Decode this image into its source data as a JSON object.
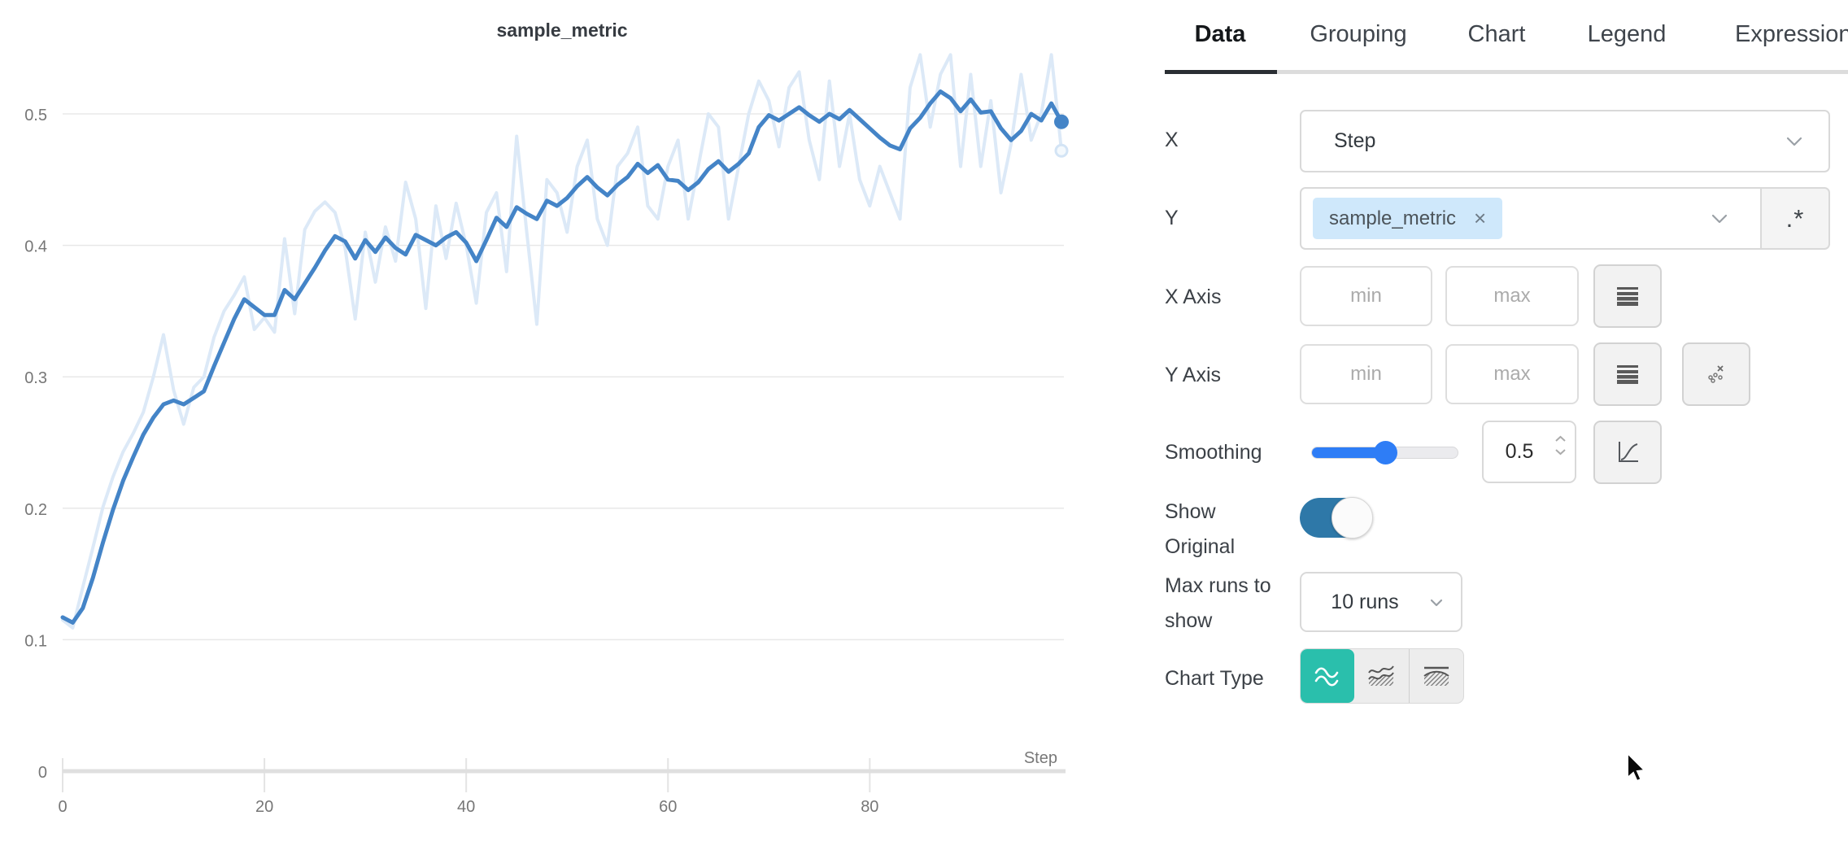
{
  "chart_data": {
    "type": "line",
    "title": "sample_metric",
    "xlabel": "Step",
    "x_ticks": [
      0,
      20,
      40,
      60,
      80
    ],
    "y_ticks": [
      0,
      0.1,
      0.2,
      0.3,
      0.4,
      0.5
    ],
    "xlim": [
      0,
      99
    ],
    "ylim": [
      0,
      0.55
    ],
    "legend_position": "none",
    "grid": "horizontal",
    "series": [
      {
        "name": "sample_metric (original)",
        "role": "original",
        "color": "#dce9f7",
        "values": [
          0.115,
          0.109,
          0.14,
          0.17,
          0.201,
          0.224,
          0.243,
          0.257,
          0.273,
          0.3,
          0.332,
          0.29,
          0.264,
          0.292,
          0.3,
          0.33,
          0.35,
          0.362,
          0.376,
          0.336,
          0.345,
          0.334,
          0.405,
          0.348,
          0.412,
          0.426,
          0.433,
          0.425,
          0.398,
          0.344,
          0.41,
          0.372,
          0.414,
          0.388,
          0.448,
          0.42,
          0.352,
          0.43,
          0.39,
          0.432,
          0.4,
          0.356,
          0.425,
          0.44,
          0.38,
          0.483,
          0.41,
          0.34,
          0.45,
          0.44,
          0.41,
          0.46,
          0.48,
          0.42,
          0.4,
          0.46,
          0.47,
          0.49,
          0.43,
          0.42,
          0.46,
          0.48,
          0.42,
          0.46,
          0.5,
          0.49,
          0.42,
          0.46,
          0.5,
          0.525,
          0.51,
          0.475,
          0.52,
          0.532,
          0.48,
          0.45,
          0.525,
          0.46,
          0.5,
          0.45,
          0.43,
          0.46,
          0.44,
          0.42,
          0.52,
          0.545,
          0.49,
          0.53,
          0.545,
          0.46,
          0.53,
          0.46,
          0.51,
          0.44,
          0.477,
          0.53,
          0.48,
          0.5,
          0.545,
          0.472
        ]
      },
      {
        "name": "sample_metric (smoothed)",
        "role": "smoothed",
        "color": "#4484c7",
        "values": [
          0.117,
          0.113,
          0.124,
          0.147,
          0.174,
          0.199,
          0.221,
          0.239,
          0.256,
          0.269,
          0.279,
          0.282,
          0.279,
          0.284,
          0.289,
          0.308,
          0.326,
          0.344,
          0.359,
          0.353,
          0.347,
          0.347,
          0.366,
          0.359,
          0.371,
          0.383,
          0.396,
          0.407,
          0.403,
          0.39,
          0.404,
          0.395,
          0.406,
          0.398,
          0.393,
          0.408,
          0.404,
          0.4,
          0.406,
          0.41,
          0.402,
          0.388,
          0.404,
          0.421,
          0.414,
          0.429,
          0.424,
          0.42,
          0.434,
          0.43,
          0.436,
          0.445,
          0.452,
          0.444,
          0.438,
          0.446,
          0.452,
          0.462,
          0.455,
          0.461,
          0.45,
          0.449,
          0.442,
          0.448,
          0.458,
          0.464,
          0.456,
          0.462,
          0.47,
          0.49,
          0.499,
          0.495,
          0.5,
          0.505,
          0.499,
          0.494,
          0.5,
          0.496,
          0.503,
          0.496,
          0.489,
          0.482,
          0.476,
          0.473,
          0.489,
          0.497,
          0.508,
          0.517,
          0.512,
          0.502,
          0.511,
          0.501,
          0.502,
          0.489,
          0.48,
          0.487,
          0.5,
          0.495,
          0.508,
          0.494
        ]
      }
    ]
  },
  "panel": {
    "tabs": [
      {
        "label": "Data",
        "active": true
      },
      {
        "label": "Grouping",
        "active": false
      },
      {
        "label": "Chart",
        "active": false
      },
      {
        "label": "Legend",
        "active": false
      },
      {
        "label": "Expressions",
        "active": false
      }
    ],
    "x_row": {
      "label": "X",
      "value": "Step"
    },
    "y_row": {
      "label": "Y",
      "chip_label": "sample_metric",
      "chip_remove": "×",
      "regex_label": ".*"
    },
    "x_axis_row": {
      "label": "X Axis",
      "min_placeholder": "min",
      "max_placeholder": "max"
    },
    "y_axis_row": {
      "label": "Y Axis",
      "min_placeholder": "min",
      "max_placeholder": "max"
    },
    "smoothing_row": {
      "label": "Smoothing",
      "value": "0.5",
      "percent": 50
    },
    "show_original_row": {
      "label_line1": "Show",
      "label_line2": "Original",
      "state": "on"
    },
    "max_runs_row": {
      "label_line1": "Max runs to",
      "label_line2": "show",
      "value": "10 runs"
    },
    "chart_type_row": {
      "label": "Chart Type",
      "selected_index": 0
    },
    "colors": {
      "accent_teal": "#2abfac",
      "toggle_blue": "#2e78a8",
      "slider_blue": "#2e7df6",
      "chip_bg": "#cfe8fb",
      "line_blue": "#4484c7",
      "line_light": "#dce9f7"
    }
  }
}
